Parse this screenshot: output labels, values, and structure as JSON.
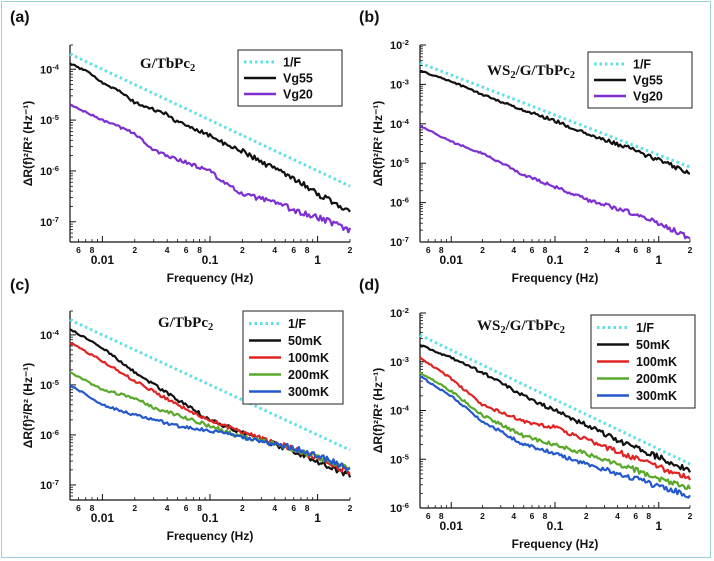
{
  "chart_data": [
    {
      "panel": "(a)",
      "type": "line",
      "title": "G/TbPc2",
      "xlabel": "Frequency (Hz)",
      "ylabel": "ΔR(f)²/R² (Hz⁻¹)",
      "xscale": "log",
      "yscale": "log",
      "xlim": [
        0.005,
        2.0
      ],
      "ylim": [
        4e-08,
        0.0003
      ],
      "xticks_major": [
        {
          "v": 0.01,
          "t": "0.01"
        },
        {
          "v": 0.1,
          "t": "0.1"
        },
        {
          "v": 1,
          "t": "1"
        }
      ],
      "xticks_minor": [
        {
          "v": 0.006,
          "t": "6"
        },
        {
          "v": 0.008,
          "t": "8"
        },
        {
          "v": 0.02,
          "t": "2"
        },
        {
          "v": 0.04,
          "t": "4"
        },
        {
          "v": 0.06,
          "t": "6"
        },
        {
          "v": 0.08,
          "t": "8"
        },
        {
          "v": 0.2,
          "t": "2"
        },
        {
          "v": 0.4,
          "t": "4"
        },
        {
          "v": 0.6,
          "t": "6"
        },
        {
          "v": 0.8,
          "t": "8"
        },
        {
          "v": 2,
          "t": "2"
        }
      ],
      "yticks": [
        {
          "v": 1e-07,
          "m": "10",
          "e": "-7"
        },
        {
          "v": 1e-06,
          "m": "10",
          "e": "-6"
        },
        {
          "v": 1e-05,
          "m": "10",
          "e": "-5"
        },
        {
          "v": 0.0001,
          "m": "10",
          "e": "-4"
        }
      ],
      "legend_position": "top-right",
      "series": [
        {
          "name": "1/F",
          "color": "#5ee0e6",
          "dashed": true,
          "x": [
            0.005,
            2.0
          ],
          "y": [
            0.0002,
            5e-07
          ]
        },
        {
          "name": "Vg55",
          "color": "#111111",
          "dashed": false,
          "x": [
            0.005,
            0.008,
            0.01,
            0.015,
            0.02,
            0.03,
            0.04,
            0.05,
            0.07,
            0.1,
            0.15,
            0.2,
            0.3,
            0.5,
            0.7,
            1.0,
            1.5,
            2.0
          ],
          "y": [
            0.00013,
            8e-05,
            5.5e-05,
            3.5e-05,
            2.2e-05,
            1.6e-05,
            1.3e-05,
            9e-06,
            7e-06,
            5e-06,
            3e-06,
            2.5e-06,
            1.5e-06,
            9e-07,
            6e-07,
            3.5e-07,
            2.3e-07,
            1.5e-07
          ]
        },
        {
          "name": "Vg20",
          "color": "#7d2fd0",
          "dashed": false,
          "x": [
            0.005,
            0.01,
            0.02,
            0.03,
            0.05,
            0.07,
            0.1,
            0.15,
            0.2,
            0.3,
            0.5,
            0.7,
            1.0,
            1.5,
            2.0
          ],
          "y": [
            2e-05,
            1e-05,
            5.5e-06,
            2.5e-06,
            1.7e-06,
            1.3e-06,
            1e-06,
            5e-07,
            3.5e-07,
            2.8e-07,
            2e-07,
            1.5e-07,
            1.2e-07,
            9e-08,
            7e-08
          ]
        }
      ]
    },
    {
      "panel": "(b)",
      "type": "line",
      "title": "WS2/G/TbPc2",
      "xlabel": "Frequency (Hz)",
      "ylabel": "ΔR(f)²/R² (Hz⁻¹)",
      "xscale": "log",
      "yscale": "log",
      "xlim": [
        0.005,
        2.0
      ],
      "ylim": [
        1e-07,
        0.01
      ],
      "xticks_major": [
        {
          "v": 0.01,
          "t": "0.01"
        },
        {
          "v": 0.1,
          "t": "0.1"
        },
        {
          "v": 1,
          "t": "1"
        }
      ],
      "xticks_minor": [
        {
          "v": 0.006,
          "t": "6"
        },
        {
          "v": 0.008,
          "t": "8"
        },
        {
          "v": 0.02,
          "t": "2"
        },
        {
          "v": 0.04,
          "t": "4"
        },
        {
          "v": 0.06,
          "t": "6"
        },
        {
          "v": 0.08,
          "t": "8"
        },
        {
          "v": 0.2,
          "t": "2"
        },
        {
          "v": 0.4,
          "t": "4"
        },
        {
          "v": 0.6,
          "t": "6"
        },
        {
          "v": 0.8,
          "t": "8"
        },
        {
          "v": 2,
          "t": "2"
        }
      ],
      "yticks": [
        {
          "v": 1e-07,
          "m": "10",
          "e": "-7"
        },
        {
          "v": 1e-06,
          "m": "10",
          "e": "-6"
        },
        {
          "v": 1e-05,
          "m": "10",
          "e": "-5"
        },
        {
          "v": 0.0001,
          "m": "10",
          "e": "-4"
        },
        {
          "v": 0.001,
          "m": "10",
          "e": "-3"
        },
        {
          "v": 0.01,
          "m": "10",
          "e": "-2"
        }
      ],
      "legend_position": "top-right",
      "series": [
        {
          "name": "1/F",
          "color": "#5ee0e6",
          "dashed": true,
          "x": [
            0.005,
            2.0
          ],
          "y": [
            0.0035,
            8e-06
          ]
        },
        {
          "name": "Vg55",
          "color": "#111111",
          "dashed": false,
          "x": [
            0.005,
            0.01,
            0.02,
            0.05,
            0.1,
            0.2,
            0.5,
            1.0,
            2.0
          ],
          "y": [
            0.0022,
            0.0012,
            0.00055,
            0.00022,
            0.00012,
            5.5e-05,
            2.5e-05,
            1.2e-05,
            5.5e-06
          ]
        },
        {
          "name": "Vg20",
          "color": "#7d2fd0",
          "dashed": false,
          "x": [
            0.005,
            0.01,
            0.02,
            0.05,
            0.1,
            0.2,
            0.5,
            1.0,
            1.5,
            2.0
          ],
          "y": [
            9e-05,
            3.5e-05,
            1.8e-05,
            5e-06,
            2.5e-06,
            1.2e-06,
            6e-07,
            3e-07,
            1.8e-07,
            1.2e-07
          ]
        }
      ]
    },
    {
      "panel": "(c)",
      "type": "line",
      "title": "G/TbPc2",
      "xlabel": "Frequency (Hz)",
      "ylabel": "ΔR(f)²/R² (Hz⁻¹)",
      "xscale": "log",
      "yscale": "log",
      "xlim": [
        0.005,
        2.0
      ],
      "ylim": [
        5e-08,
        0.0003
      ],
      "xticks_major": [
        {
          "v": 0.01,
          "t": "0.01"
        },
        {
          "v": 0.1,
          "t": "0.1"
        },
        {
          "v": 1,
          "t": "1"
        }
      ],
      "xticks_minor": [
        {
          "v": 0.006,
          "t": "6"
        },
        {
          "v": 0.008,
          "t": "8"
        },
        {
          "v": 0.02,
          "t": "2"
        },
        {
          "v": 0.04,
          "t": "4"
        },
        {
          "v": 0.06,
          "t": "6"
        },
        {
          "v": 0.08,
          "t": "8"
        },
        {
          "v": 0.2,
          "t": "2"
        },
        {
          "v": 0.4,
          "t": "4"
        },
        {
          "v": 0.6,
          "t": "6"
        },
        {
          "v": 0.8,
          "t": "8"
        },
        {
          "v": 2,
          "t": "2"
        }
      ],
      "yticks": [
        {
          "v": 1e-07,
          "m": "10",
          "e": "-7"
        },
        {
          "v": 1e-06,
          "m": "10",
          "e": "-6"
        },
        {
          "v": 1e-05,
          "m": "10",
          "e": "-5"
        },
        {
          "v": 0.0001,
          "m": "10",
          "e": "-4"
        }
      ],
      "legend_position": "top-right",
      "series": [
        {
          "name": "1/F",
          "color": "#5ee0e6",
          "dashed": true,
          "x": [
            0.005,
            2.0
          ],
          "y": [
            0.0002,
            5e-07
          ]
        },
        {
          "name": "50mK",
          "color": "#111111",
          "dashed": false,
          "x": [
            0.005,
            0.01,
            0.02,
            0.05,
            0.1,
            0.2,
            0.5,
            1.0,
            2.0
          ],
          "y": [
            0.00013,
            5.5e-05,
            1.8e-05,
            5e-06,
            2e-06,
            1.1e-06,
            5.5e-07,
            3e-07,
            1.5e-07
          ]
        },
        {
          "name": "100mK",
          "color": "#e02424",
          "dashed": false,
          "x": [
            0.005,
            0.01,
            0.02,
            0.05,
            0.1,
            0.2,
            0.5,
            1.0,
            2.0
          ],
          "y": [
            7e-05,
            3e-05,
            1.2e-05,
            4e-06,
            2e-06,
            1.1e-06,
            6e-07,
            3.5e-07,
            1.8e-07
          ]
        },
        {
          "name": "200mK",
          "color": "#5aa82a",
          "dashed": false,
          "x": [
            0.005,
            0.01,
            0.02,
            0.03,
            0.05,
            0.1,
            0.2,
            0.5,
            1.0,
            2.0
          ],
          "y": [
            1.8e-05,
            8e-06,
            5.5e-06,
            3.5e-06,
            2.5e-06,
            1.5e-06,
            9e-07,
            6e-07,
            3.5e-07,
            2.2e-07
          ]
        },
        {
          "name": "300mK",
          "color": "#2458cc",
          "dashed": false,
          "x": [
            0.005,
            0.01,
            0.02,
            0.05,
            0.1,
            0.2,
            0.5,
            1.0,
            2.0
          ],
          "y": [
            1e-05,
            4e-06,
            2.5e-06,
            1.5e-06,
            1.2e-06,
            9e-07,
            6e-07,
            4e-07,
            2e-07
          ]
        }
      ]
    },
    {
      "panel": "(d)",
      "type": "line",
      "title": "WS2/G/TbPc2",
      "xlabel": "Frequency (Hz)",
      "ylabel": "ΔR(f)²/R² (Hz⁻¹)",
      "xscale": "log",
      "yscale": "log",
      "xlim": [
        0.005,
        2.0
      ],
      "ylim": [
        1e-06,
        0.01
      ],
      "xticks_major": [
        {
          "v": 0.01,
          "t": "0.01"
        },
        {
          "v": 0.1,
          "t": "0.1"
        },
        {
          "v": 1,
          "t": "1"
        }
      ],
      "xticks_minor": [
        {
          "v": 0.006,
          "t": "6"
        },
        {
          "v": 0.008,
          "t": "8"
        },
        {
          "v": 0.02,
          "t": "2"
        },
        {
          "v": 0.04,
          "t": "4"
        },
        {
          "v": 0.06,
          "t": "6"
        },
        {
          "v": 0.08,
          "t": "8"
        },
        {
          "v": 0.2,
          "t": "2"
        },
        {
          "v": 0.4,
          "t": "4"
        },
        {
          "v": 0.6,
          "t": "6"
        },
        {
          "v": 0.8,
          "t": "8"
        },
        {
          "v": 2,
          "t": "2"
        }
      ],
      "yticks": [
        {
          "v": 1e-06,
          "m": "10",
          "e": "-6"
        },
        {
          "v": 1e-05,
          "m": "10",
          "e": "-5"
        },
        {
          "v": 0.0001,
          "m": "10",
          "e": "-4"
        },
        {
          "v": 0.001,
          "m": "10",
          "e": "-3"
        },
        {
          "v": 0.01,
          "m": "10",
          "e": "-2"
        }
      ],
      "legend_position": "top-right",
      "series": [
        {
          "name": "1/F",
          "color": "#5ee0e6",
          "dashed": true,
          "x": [
            0.005,
            2.0
          ],
          "y": [
            0.0035,
            8e-06
          ]
        },
        {
          "name": "50mK",
          "color": "#111111",
          "dashed": false,
          "x": [
            0.005,
            0.01,
            0.02,
            0.05,
            0.1,
            0.2,
            0.5,
            1.0,
            2.0
          ],
          "y": [
            0.0022,
            0.0012,
            0.0006,
            0.0002,
            0.0001,
            5e-05,
            2e-05,
            1.1e-05,
            6e-06
          ]
        },
        {
          "name": "100mK",
          "color": "#e02424",
          "dashed": false,
          "x": [
            0.005,
            0.01,
            0.02,
            0.05,
            0.1,
            0.2,
            0.5,
            1.0,
            2.0
          ],
          "y": [
            0.0012,
            0.00045,
            0.00013,
            6e-05,
            4.5e-05,
            2.5e-05,
            1.2e-05,
            7e-06,
            4e-06
          ]
        },
        {
          "name": "200mK",
          "color": "#5aa82a",
          "dashed": false,
          "x": [
            0.005,
            0.01,
            0.02,
            0.05,
            0.1,
            0.2,
            0.5,
            1.0,
            2.0
          ],
          "y": [
            0.0006,
            0.00025,
            8e-05,
            3e-05,
            2e-05,
            1.3e-05,
            7e-06,
            4e-06,
            2.5e-06
          ]
        },
        {
          "name": "300mK",
          "color": "#2458cc",
          "dashed": false,
          "x": [
            0.005,
            0.01,
            0.02,
            0.05,
            0.1,
            0.2,
            0.5,
            1.0,
            2.0
          ],
          "y": [
            0.0005,
            0.0002,
            6e-05,
            2e-05,
            1.3e-05,
            8e-06,
            4.5e-06,
            2.8e-06,
            1.8e-06
          ]
        }
      ]
    }
  ]
}
